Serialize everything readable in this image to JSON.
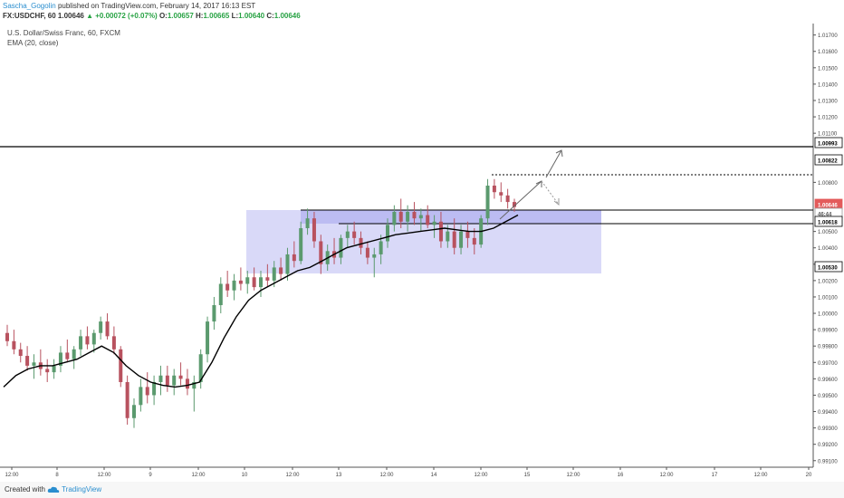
{
  "header": {
    "author": "Sascha_Gogolin",
    "published": "published on TradingView.com, February 14, 2017 16:13 EST",
    "symbol": "FX:USDCHF, 60",
    "last": "1.00646",
    "change": "▲ +0.00072 (+0.07%)",
    "o_label": "O:",
    "o_value": "1.00657",
    "h_label": "H:",
    "h_value": "1.00665",
    "l_label": "L:",
    "l_value": "1.00640",
    "c_label": "C:",
    "c_value": "1.00646"
  },
  "footer": {
    "created": "Created with",
    "brand": "TradingView"
  },
  "colors": {
    "bull": "#5b9a6e",
    "bear": "#b8525f",
    "zone": "#ccccf6",
    "ema": "#000000",
    "price_label": "#e35b5b",
    "text": "#333333",
    "link": "#2a8ecf"
  },
  "chart_data": {
    "type": "candlestick",
    "title": "U.S. Dollar/Swiss Franc, 60, FXCM",
    "indicator": "EMA (20, close)",
    "y_ticks": [
      "1.01700",
      "1.01600",
      "1.01500",
      "1.01400",
      "1.01300",
      "1.01200",
      "1.01100",
      "1.00993",
      "1.00822",
      "1.00800",
      "1.00646",
      "46:44",
      "1.00618",
      "1.00500",
      "1.00400",
      "1.00300",
      "1.00200",
      "1.00530",
      "1.00100",
      "1.00000",
      "0.99900",
      "0.99800",
      "0.99700",
      "0.99600",
      "0.99500",
      "0.99400",
      "0.99300",
      "0.99200",
      "0.99100"
    ],
    "x_ticks": [
      "12:00",
      "8",
      "12:00",
      "9",
      "12:00",
      "10",
      "12:00",
      "13",
      "12:00",
      "14",
      "12:00",
      "15",
      "12:00",
      "16",
      "12:00",
      "17",
      "12:00",
      "20"
    ],
    "ylim": [
      0.9906,
      1.0177
    ],
    "key_levels": [
      {
        "price": 1.00993,
        "label": "1.00993",
        "style": "solid"
      },
      {
        "price": 1.00822,
        "label": "1.00822",
        "style": "dotted"
      },
      {
        "price": 1.00646,
        "label": "1.00646",
        "style": "solid",
        "current": true
      },
      {
        "price": 1.00618,
        "label": "1.00618",
        "style": "solid"
      },
      {
        "price": 1.0053,
        "label": "1.00530",
        "style": "box"
      }
    ],
    "zone": {
      "top": 1.00646,
      "bottom": 1.0024
    },
    "ohlc": [
      [
        0.9988,
        0.9993,
        0.998,
        0.9983
      ],
      [
        0.9983,
        0.999,
        0.9975,
        0.9978
      ],
      [
        0.9978,
        0.9982,
        0.997,
        0.9974
      ],
      [
        0.9974,
        0.998,
        0.9965,
        0.9968
      ],
      [
        0.9968,
        0.9975,
        0.996,
        0.997
      ],
      [
        0.997,
        0.9978,
        0.9962,
        0.9966
      ],
      [
        0.9966,
        0.9972,
        0.9958,
        0.9964
      ],
      [
        0.9964,
        0.9972,
        0.996,
        0.9968
      ],
      [
        0.9968,
        0.998,
        0.9964,
        0.9976
      ],
      [
        0.9976,
        0.9984,
        0.997,
        0.9972
      ],
      [
        0.9972,
        0.998,
        0.9966,
        0.9978
      ],
      [
        0.9978,
        0.999,
        0.9974,
        0.9986
      ],
      [
        0.9986,
        0.9992,
        0.9978,
        0.9981
      ],
      [
        0.9981,
        0.999,
        0.9976,
        0.9988
      ],
      [
        0.9988,
        0.9998,
        0.9984,
        0.9995
      ],
      [
        0.9995,
        1.0,
        0.9984,
        0.9986
      ],
      [
        0.9986,
        0.9992,
        0.9975,
        0.9978
      ],
      [
        0.9978,
        0.998,
        0.9955,
        0.9958
      ],
      [
        0.9958,
        0.9962,
        0.9932,
        0.9936
      ],
      [
        0.9936,
        0.9948,
        0.993,
        0.9944
      ],
      [
        0.9944,
        0.996,
        0.994,
        0.9955
      ],
      [
        0.9955,
        0.9964,
        0.9945,
        0.995
      ],
      [
        0.995,
        0.9962,
        0.9944,
        0.9958
      ],
      [
        0.9958,
        0.9968,
        0.995,
        0.9962
      ],
      [
        0.9962,
        0.9968,
        0.9952,
        0.9956
      ],
      [
        0.9956,
        0.9966,
        0.995,
        0.9962
      ],
      [
        0.9962,
        0.997,
        0.9956,
        0.996
      ],
      [
        0.996,
        0.9966,
        0.995,
        0.9954
      ],
      [
        0.9954,
        0.9962,
        0.994,
        0.9958
      ],
      [
        0.9958,
        0.9978,
        0.9954,
        0.9975
      ],
      [
        0.9975,
        0.9998,
        0.997,
        0.9995
      ],
      [
        0.9995,
        1.001,
        0.999,
        1.0005
      ],
      [
        1.0005,
        1.0022,
        1.0,
        1.0018
      ],
      [
        1.0018,
        1.0026,
        1.001,
        1.0014
      ],
      [
        1.0014,
        1.0024,
        1.0008,
        1.002
      ],
      [
        1.002,
        1.0028,
        1.0014,
        1.0018
      ],
      [
        1.0018,
        1.0026,
        1.0012,
        1.0022
      ],
      [
        1.0022,
        1.0028,
        1.0014,
        1.0016
      ],
      [
        1.0016,
        1.0026,
        1.001,
        1.0022
      ],
      [
        1.0022,
        1.003,
        1.0016,
        1.002
      ],
      [
        1.002,
        1.0032,
        1.0016,
        1.0028
      ],
      [
        1.0028,
        1.0034,
        1.002,
        1.0024
      ],
      [
        1.0024,
        1.004,
        1.002,
        1.0036
      ],
      [
        1.0036,
        1.0044,
        1.0028,
        1.0032
      ],
      [
        1.0032,
        1.0056,
        1.003,
        1.0052
      ],
      [
        1.0052,
        1.0064,
        1.0048,
        1.0058
      ],
      [
        1.0058,
        1.0062,
        1.004,
        1.0044
      ],
      [
        1.0044,
        1.0048,
        1.0024,
        1.003
      ],
      [
        1.003,
        1.0042,
        1.0026,
        1.0038
      ],
      [
        1.0038,
        1.0046,
        1.003,
        1.0034
      ],
      [
        1.0034,
        1.0048,
        1.003,
        1.0046
      ],
      [
        1.0046,
        1.0054,
        1.004,
        1.005
      ],
      [
        1.005,
        1.0056,
        1.0042,
        1.0046
      ],
      [
        1.0046,
        1.005,
        1.0036,
        1.004
      ],
      [
        1.004,
        1.0044,
        1.003,
        1.0034
      ],
      [
        1.0034,
        1.004,
        1.0022,
        1.0036
      ],
      [
        1.0036,
        1.0048,
        1.003,
        1.0044
      ],
      [
        1.0044,
        1.0058,
        1.004,
        1.0054
      ],
      [
        1.0054,
        1.0066,
        1.005,
        1.0062
      ],
      [
        1.0062,
        1.007,
        1.0052,
        1.0056
      ],
      [
        1.0056,
        1.0066,
        1.005,
        1.0062
      ],
      [
        1.0062,
        1.0068,
        1.0054,
        1.0058
      ],
      [
        1.0058,
        1.0064,
        1.005,
        1.006
      ],
      [
        1.006,
        1.0066,
        1.0052,
        1.0054
      ],
      [
        1.0054,
        1.006,
        1.0046,
        1.0056
      ],
      [
        1.0056,
        1.0062,
        1.004,
        1.0044
      ],
      [
        1.0044,
        1.0054,
        1.004,
        1.005
      ],
      [
        1.005,
        1.0058,
        1.0036,
        1.004
      ],
      [
        1.004,
        1.0054,
        1.0036,
        1.005
      ],
      [
        1.005,
        1.0056,
        1.004,
        1.0046
      ],
      [
        1.0046,
        1.0052,
        1.0036,
        1.0042
      ],
      [
        1.0042,
        1.006,
        1.004,
        1.0058
      ],
      [
        1.0058,
        1.0082,
        1.0054,
        1.0078
      ],
      [
        1.0078,
        1.0082,
        1.007,
        1.0074
      ],
      [
        1.0074,
        1.008,
        1.0068,
        1.0072
      ],
      [
        1.0072,
        1.0076,
        1.0064,
        1.0068
      ],
      [
        1.0068,
        1.007,
        1.0062,
        1.0065
      ]
    ],
    "ema": [
      0.9955,
      0.9962,
      0.9966,
      0.9968,
      0.9968,
      0.997,
      0.9972,
      0.9976,
      0.998,
      0.9976,
      0.9968,
      0.9962,
      0.9958,
      0.9956,
      0.9955,
      0.9956,
      0.9958,
      0.997,
      0.9985,
      0.9998,
      1.0008,
      1.0014,
      1.0018,
      1.0022,
      1.0026,
      1.0028,
      1.0032,
      1.0036,
      1.004,
      1.0042,
      1.0044,
      1.0046,
      1.0048,
      1.0049,
      1.005,
      1.0051,
      1.0052,
      1.0051,
      1.005,
      1.005,
      1.0052,
      1.0056,
      1.006
    ]
  }
}
